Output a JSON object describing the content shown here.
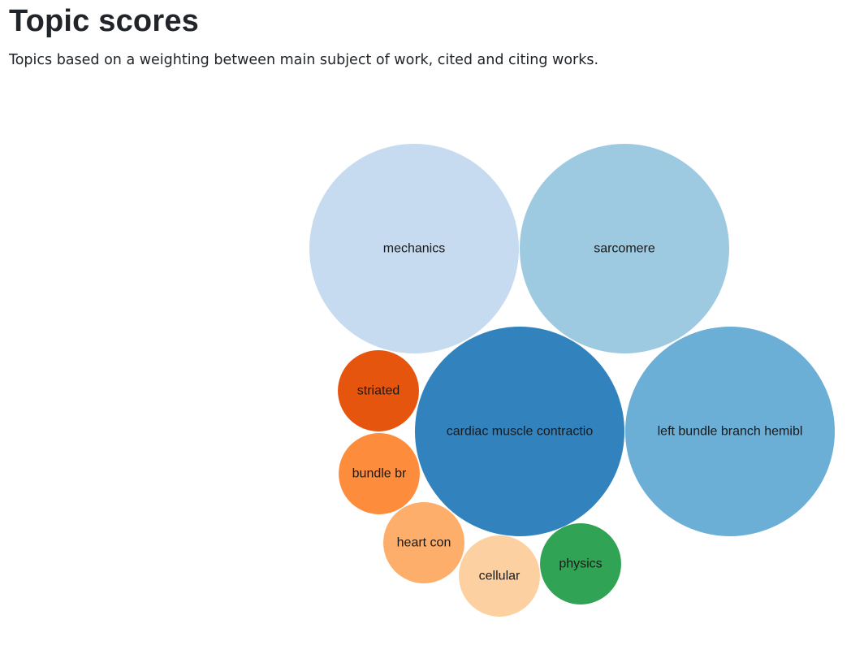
{
  "header": {
    "title": "Topic scores",
    "subtitle": "Topics based on a weighting between main subject of work, cited and citing works."
  },
  "chart_data": {
    "type": "bubble",
    "title": "",
    "bubbles": [
      {
        "label": "mechanics",
        "size": 1.0,
        "color": "#c6dbef"
      },
      {
        "label": "sarcomere",
        "size": 1.0,
        "color": "#9ecae1"
      },
      {
        "label": "cardiac muscle contractio",
        "size": 1.0,
        "color": "#3182bd"
      },
      {
        "label": "left bundle branch hemibl",
        "size": 1.0,
        "color": "#6baed6"
      },
      {
        "label": "striated",
        "size": 0.15,
        "color": "#e6550d"
      },
      {
        "label": "bundle br",
        "size": 0.15,
        "color": "#fd8d3c"
      },
      {
        "label": "heart con",
        "size": 0.15,
        "color": "#fdae6b"
      },
      {
        "label": "cellular",
        "size": 0.15,
        "color": "#fdd0a2"
      },
      {
        "label": "physics",
        "size": 0.15,
        "color": "#31a354"
      }
    ]
  }
}
